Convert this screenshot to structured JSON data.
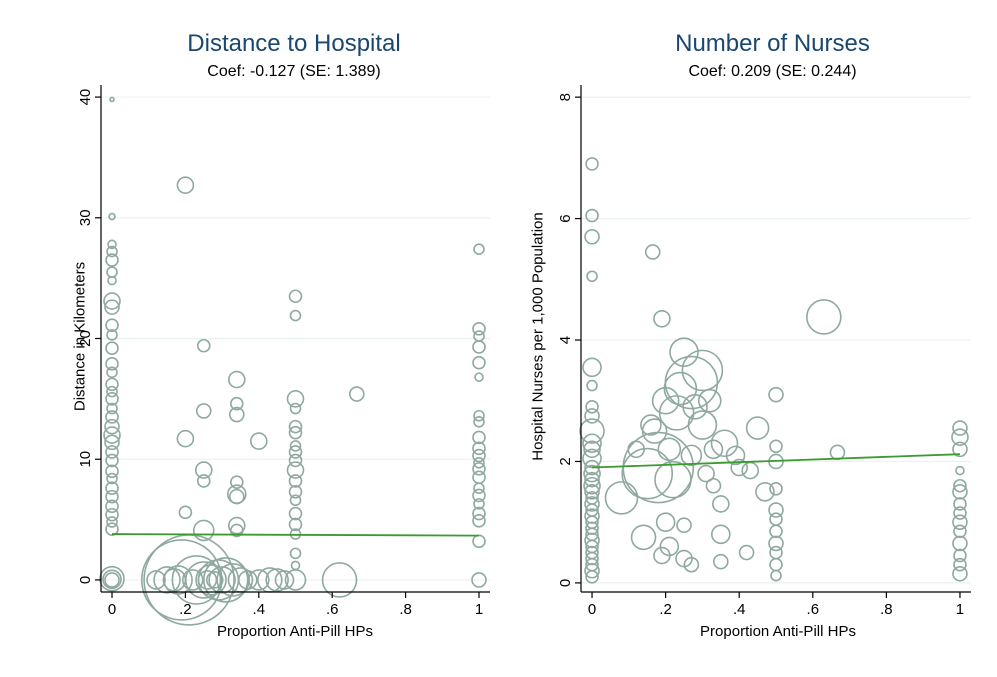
{
  "chart_data": [
    {
      "type": "scatter",
      "title": "Distance to Hospital",
      "subtitle": "Coef: -0.127 (SE: 1.389)",
      "xlabel": "Proportion Anti-Pill HPs",
      "ylabel": "Distance in Kilometers",
      "xlim": [
        -0.03,
        1.03
      ],
      "ylim": [
        -1,
        41
      ],
      "x_ticks": [
        0,
        0.2,
        0.4,
        0.6,
        0.8,
        1
      ],
      "x_tick_labels": [
        "0",
        ".2",
        ".4",
        ".6",
        ".8",
        "1"
      ],
      "y_ticks": [
        0,
        10,
        20,
        30,
        40
      ],
      "y_tick_labels": [
        "0",
        "10",
        "20",
        "30",
        "40"
      ],
      "grid": true,
      "colors": {
        "points": "#8fa9a0",
        "fit": "#3a9b2f",
        "title": "#1a476f",
        "grid": "#eaf2f3"
      },
      "fit_line": {
        "x": [
          0,
          1
        ],
        "y": [
          3.8,
          3.67
        ]
      },
      "points": [
        [
          0,
          39.8,
          2
        ],
        [
          0,
          30.1,
          3
        ],
        [
          0,
          27.8,
          4
        ],
        [
          0,
          27.2,
          5
        ],
        [
          0,
          26.5,
          6
        ],
        [
          0,
          25.5,
          5
        ],
        [
          0,
          24.8,
          4
        ],
        [
          0,
          23.1,
          8
        ],
        [
          0,
          22.6,
          7
        ],
        [
          0,
          21.1,
          6
        ],
        [
          0,
          20.3,
          5
        ],
        [
          0,
          19.2,
          6
        ],
        [
          0,
          17.9,
          6
        ],
        [
          0,
          17.2,
          5
        ],
        [
          0,
          16.2,
          6
        ],
        [
          0,
          15.6,
          5
        ],
        [
          0,
          15.0,
          6
        ],
        [
          0,
          14.2,
          5
        ],
        [
          0,
          13.5,
          6
        ],
        [
          0,
          12.7,
          7
        ],
        [
          0,
          12.0,
          8
        ],
        [
          0,
          11.4,
          7
        ],
        [
          0,
          10.6,
          6
        ],
        [
          0,
          9.9,
          6
        ],
        [
          0,
          9.0,
          6
        ],
        [
          0,
          8.4,
          5
        ],
        [
          0,
          7.6,
          6
        ],
        [
          0,
          6.9,
          6
        ],
        [
          0,
          6.1,
          6
        ],
        [
          0,
          5.4,
          6
        ],
        [
          0,
          4.8,
          5
        ],
        [
          0,
          4.2,
          6
        ],
        [
          0,
          0.1,
          12
        ],
        [
          0,
          0.05,
          9
        ],
        [
          0,
          0.0,
          7
        ],
        [
          0.2,
          32.7,
          8
        ],
        [
          0.25,
          19.4,
          6
        ],
        [
          0.25,
          14.0,
          7
        ],
        [
          0.25,
          9.1,
          8
        ],
        [
          0.25,
          8.2,
          6
        ],
        [
          0.25,
          4.1,
          10
        ],
        [
          0.2,
          11.7,
          8
        ],
        [
          0.2,
          5.6,
          6
        ],
        [
          0.34,
          16.6,
          8
        ],
        [
          0.34,
          14.6,
          6
        ],
        [
          0.34,
          13.7,
          7
        ],
        [
          0.34,
          8.1,
          6
        ],
        [
          0.34,
          7.1,
          9
        ],
        [
          0.34,
          6.9,
          7
        ],
        [
          0.34,
          4.5,
          8
        ],
        [
          0.34,
          4.1,
          6
        ],
        [
          0.4,
          11.5,
          8
        ],
        [
          0.5,
          23.5,
          6
        ],
        [
          0.5,
          21.9,
          5
        ],
        [
          0.5,
          15.0,
          8
        ],
        [
          0.5,
          14.2,
          5
        ],
        [
          0.5,
          12.7,
          6
        ],
        [
          0.5,
          12.2,
          6
        ],
        [
          0.5,
          11.1,
          5
        ],
        [
          0.5,
          10.6,
          6
        ],
        [
          0.5,
          9.9,
          6
        ],
        [
          0.5,
          9.1,
          8
        ],
        [
          0.5,
          8.2,
          6
        ],
        [
          0.5,
          7.3,
          6
        ],
        [
          0.5,
          6.6,
          5
        ],
        [
          0.5,
          5.5,
          6
        ],
        [
          0.5,
          4.6,
          6
        ],
        [
          0.5,
          3.8,
          5
        ],
        [
          0.5,
          2.2,
          5
        ],
        [
          0.5,
          1.2,
          4
        ],
        [
          0.667,
          15.4,
          7
        ],
        [
          1,
          27.4,
          5
        ],
        [
          1,
          20.8,
          6
        ],
        [
          1,
          20.2,
          5
        ],
        [
          1,
          19.3,
          6
        ],
        [
          1,
          18.0,
          6
        ],
        [
          1,
          16.8,
          4
        ],
        [
          1,
          13.6,
          5
        ],
        [
          1,
          13.1,
          5
        ],
        [
          1,
          11.8,
          6
        ],
        [
          1,
          10.9,
          6
        ],
        [
          1,
          10.3,
          6
        ],
        [
          1,
          9.7,
          5
        ],
        [
          1,
          9.2,
          6
        ],
        [
          1,
          8.5,
          6
        ],
        [
          1,
          7.6,
          5
        ],
        [
          1,
          7.0,
          6
        ],
        [
          1,
          6.3,
          5
        ],
        [
          1,
          5.5,
          6
        ],
        [
          1,
          4.9,
          6
        ],
        [
          1,
          3.2,
          6
        ],
        [
          1,
          0.0,
          7
        ],
        [
          0.12,
          0.0,
          9
        ],
        [
          0.15,
          0.0,
          13
        ],
        [
          0.17,
          0.0,
          11
        ],
        [
          0.19,
          0.0,
          40
        ],
        [
          0.21,
          0.0,
          45
        ],
        [
          0.23,
          0.0,
          24
        ],
        [
          0.25,
          0.0,
          18
        ],
        [
          0.27,
          0.0,
          15
        ],
        [
          0.29,
          0.0,
          20
        ],
        [
          0.31,
          0.0,
          22
        ],
        [
          0.33,
          0.0,
          16
        ],
        [
          0.35,
          0.0,
          12
        ],
        [
          0.37,
          0.0,
          9
        ],
        [
          0.4,
          0.0,
          10
        ],
        [
          0.43,
          0.0,
          12
        ],
        [
          0.45,
          0.0,
          11
        ],
        [
          0.47,
          0.0,
          9
        ],
        [
          0.5,
          0.0,
          10
        ],
        [
          0.62,
          0.0,
          17
        ],
        [
          0.18,
          0.0,
          14
        ],
        [
          0.22,
          0.0,
          10
        ],
        [
          0.26,
          0.0,
          9
        ],
        [
          0.3,
          0.0,
          13
        ],
        [
          0.28,
          0.0,
          8
        ]
      ]
    },
    {
      "type": "scatter",
      "title": "Number of Nurses",
      "subtitle": "Coef: 0.209 (SE: 0.244)",
      "xlabel": "Proportion Anti-Pill HPs",
      "ylabel": "Hospital Nurses per 1,000 Population",
      "xlim": [
        -0.03,
        1.03
      ],
      "ylim": [
        -0.15,
        8.2
      ],
      "x_ticks": [
        0,
        0.2,
        0.4,
        0.6,
        0.8,
        1
      ],
      "x_tick_labels": [
        "0",
        ".2",
        ".4",
        ".6",
        ".8",
        "1"
      ],
      "y_ticks": [
        0,
        2,
        4,
        6,
        8
      ],
      "y_tick_labels": [
        "0",
        "2",
        "4",
        "6",
        "8"
      ],
      "grid": true,
      "colors": {
        "points": "#8fa9a0",
        "fit": "#3a9b2f",
        "title": "#1a476f",
        "grid": "#eaf2f3"
      },
      "fit_line": {
        "x": [
          0,
          1
        ],
        "y": [
          1.9,
          2.12
        ]
      },
      "points": [
        [
          0,
          6.9,
          6
        ],
        [
          0,
          6.05,
          6
        ],
        [
          0,
          5.7,
          7
        ],
        [
          0,
          5.05,
          5
        ],
        [
          0,
          3.55,
          9
        ],
        [
          0,
          3.25,
          5
        ],
        [
          0,
          2.9,
          6
        ],
        [
          0,
          2.75,
          7
        ],
        [
          0,
          2.5,
          12
        ],
        [
          0,
          2.3,
          9
        ],
        [
          0,
          2.2,
          8
        ],
        [
          0,
          2.05,
          9
        ],
        [
          0,
          1.9,
          7
        ],
        [
          0,
          1.8,
          8
        ],
        [
          0,
          1.7,
          7
        ],
        [
          0,
          1.6,
          8
        ],
        [
          0,
          1.5,
          7
        ],
        [
          0,
          1.4,
          6
        ],
        [
          0,
          1.3,
          7
        ],
        [
          0,
          1.2,
          6
        ],
        [
          0,
          1.1,
          7
        ],
        [
          0,
          1.0,
          6
        ],
        [
          0,
          0.9,
          6
        ],
        [
          0,
          0.8,
          6
        ],
        [
          0,
          0.7,
          7
        ],
        [
          0,
          0.6,
          6
        ],
        [
          0,
          0.5,
          6
        ],
        [
          0,
          0.4,
          6
        ],
        [
          0,
          0.3,
          6
        ],
        [
          0,
          0.2,
          7
        ],
        [
          0,
          0.1,
          6
        ],
        [
          0.165,
          5.45,
          7
        ],
        [
          0.19,
          4.35,
          8
        ],
        [
          0.63,
          4.38,
          17
        ],
        [
          0.25,
          3.8,
          14
        ],
        [
          0.3,
          3.5,
          20
        ],
        [
          0.27,
          3.3,
          26
        ],
        [
          0.24,
          3.2,
          16
        ],
        [
          0.2,
          3.0,
          13
        ],
        [
          0.23,
          2.8,
          17
        ],
        [
          0.28,
          2.9,
          12
        ],
        [
          0.3,
          2.6,
          14
        ],
        [
          0.32,
          3.0,
          11
        ],
        [
          0.17,
          2.5,
          12
        ],
        [
          0.21,
          2.2,
          11
        ],
        [
          0.18,
          1.9,
          35
        ],
        [
          0.15,
          1.8,
          25
        ],
        [
          0.22,
          1.7,
          18
        ],
        [
          0.27,
          2.1,
          10
        ],
        [
          0.33,
          2.2,
          9
        ],
        [
          0.36,
          2.3,
          13
        ],
        [
          0.39,
          2.1,
          9
        ],
        [
          0.4,
          1.9,
          8
        ],
        [
          0.43,
          1.85,
          8
        ],
        [
          0.45,
          2.55,
          11
        ],
        [
          0.47,
          1.5,
          9
        ],
        [
          0.5,
          3.1,
          7
        ],
        [
          0.5,
          2.25,
          6
        ],
        [
          0.5,
          2.0,
          7
        ],
        [
          0.5,
          1.55,
          6
        ],
        [
          0.5,
          1.2,
          7
        ],
        [
          0.5,
          1.05,
          6
        ],
        [
          0.5,
          0.85,
          6
        ],
        [
          0.5,
          0.65,
          7
        ],
        [
          0.5,
          0.5,
          6
        ],
        [
          0.5,
          0.3,
          6
        ],
        [
          0.5,
          0.12,
          5
        ],
        [
          0.667,
          2.15,
          7
        ],
        [
          0.35,
          1.3,
          8
        ],
        [
          0.35,
          0.8,
          9
        ],
        [
          0.35,
          0.35,
          7
        ],
        [
          0.25,
          0.95,
          7
        ],
        [
          0.25,
          0.4,
          8
        ],
        [
          0.21,
          0.6,
          9
        ],
        [
          0.19,
          0.45,
          8
        ],
        [
          0.2,
          1.0,
          9
        ],
        [
          0.14,
          0.75,
          12
        ],
        [
          0.08,
          1.4,
          16
        ],
        [
          0.31,
          1.8,
          8
        ],
        [
          0.33,
          1.6,
          7
        ],
        [
          0.42,
          0.5,
          7
        ],
        [
          0.12,
          2.2,
          8
        ],
        [
          0.27,
          0.3,
          7
        ],
        [
          0.16,
          2.6,
          10
        ],
        [
          1,
          2.55,
          7
        ],
        [
          1,
          2.4,
          8
        ],
        [
          1,
          2.2,
          7
        ],
        [
          1,
          1.85,
          4
        ],
        [
          1,
          1.6,
          6
        ],
        [
          1,
          1.5,
          7
        ],
        [
          1,
          1.3,
          6
        ],
        [
          1,
          1.15,
          6
        ],
        [
          1,
          1.0,
          7
        ],
        [
          1,
          0.85,
          6
        ],
        [
          1,
          0.65,
          7
        ],
        [
          1,
          0.45,
          6
        ],
        [
          1,
          0.3,
          6
        ],
        [
          1,
          0.15,
          7
        ]
      ]
    }
  ]
}
